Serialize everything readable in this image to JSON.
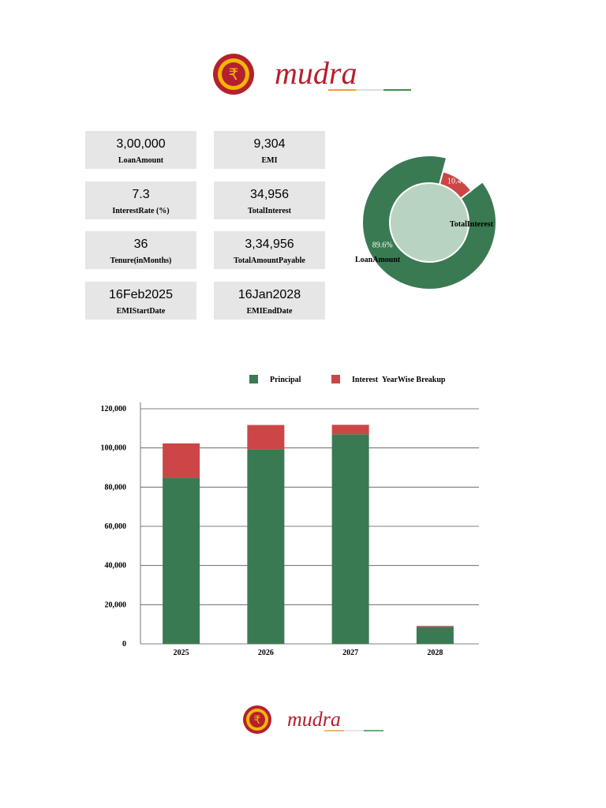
{
  "brand": {
    "name": "mudra",
    "colors": {
      "primary": "#b5202d",
      "accent": "#f2b705",
      "saffron": "#f29b38",
      "green": "#3e8e4f"
    }
  },
  "summary": {
    "loan_amount": {
      "value": "3,00,000",
      "label": "LoanAmount"
    },
    "emi": {
      "value": "9,304",
      "label": "EMI"
    },
    "interest_rate": {
      "value": "7.3",
      "label": "InterestRate (%)"
    },
    "total_interest": {
      "value": "34,956",
      "label": "TotalInterest"
    },
    "tenure": {
      "value": "36",
      "label": "Tenure(inMonths)"
    },
    "total_payable": {
      "value": "3,34,956",
      "label": "TotalAmountPayable"
    },
    "emi_start": {
      "value": "16Feb2025",
      "label": "EMIStartDate"
    },
    "emi_end": {
      "value": "16Jan2028",
      "label": "EMIEndDate"
    }
  },
  "chart_data": [
    {
      "type": "pie",
      "donut": true,
      "slices": [
        {
          "name": "LoanAmount",
          "value": 89.6,
          "label": "89.6%",
          "color": "#3a7a53"
        },
        {
          "name": "TotalInterest",
          "value": 10.4,
          "label": "10.4%",
          "color": "#cc4646"
        }
      ]
    },
    {
      "type": "bar",
      "stacked": true,
      "title": "YearWise Breakup",
      "categories": [
        "2025",
        "2026",
        "2027",
        "2028"
      ],
      "series": [
        {
          "name": "Principal",
          "color": "#3a7a53",
          "values": [
            84800,
            99400,
            107000,
            8800
          ]
        },
        {
          "name": "Interest",
          "color": "#cc4646",
          "values": [
            17500,
            12300,
            4800,
            350
          ]
        }
      ],
      "ylim": [
        0,
        120000
      ],
      "yticks": [
        "0",
        "20,000",
        "40,000",
        "60,000",
        "80,000",
        "100,000",
        "120,000"
      ],
      "grid": true,
      "legend": "top"
    }
  ]
}
